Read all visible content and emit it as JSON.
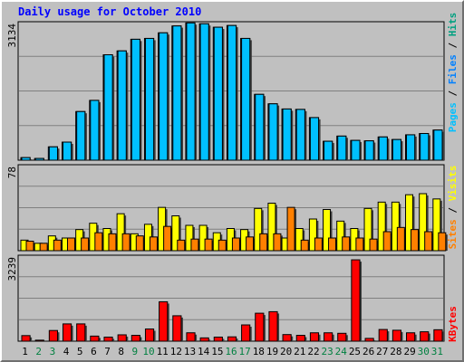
{
  "title": "Daily usage for October 2010",
  "colors": {
    "background": "#c0c0c0",
    "pages": "#00c0ff",
    "files": "#0080ff",
    "hits": "#00a080",
    "sites": "#ff8000",
    "visits": "#ffff00",
    "kbytes": "#ff0000",
    "title": "#0000ff",
    "weekend_label": "#008040",
    "day_label": "#000000"
  },
  "chart_data": [
    {
      "type": "bar",
      "panel": "top",
      "ymax_label": "3134",
      "ylim": [
        0,
        3134
      ],
      "legend_labels": [
        "Pages",
        "Files",
        "Hits"
      ],
      "categories": [
        "1",
        "2",
        "3",
        "4",
        "5",
        "6",
        "7",
        "8",
        "9",
        "10",
        "11",
        "12",
        "13",
        "14",
        "15",
        "16",
        "17",
        "18",
        "19",
        "20",
        "21",
        "22",
        "23",
        "24",
        "25",
        "26",
        "27",
        "28",
        "29",
        "30",
        "31"
      ],
      "series": [
        {
          "name": "Pages",
          "values": [
            60,
            40,
            310,
            420,
            1130,
            1390,
            2450,
            2540,
            2810,
            2830,
            2960,
            3120,
            3190,
            3170,
            3090,
            3130,
            2830,
            1530,
            1310,
            1190,
            1180,
            990,
            440,
            560,
            460,
            450,
            540,
            480,
            590,
            620,
            700
          ]
        },
        {
          "name": "Files",
          "values": [
            60,
            40,
            310,
            420,
            1130,
            1390,
            2450,
            2540,
            2810,
            2830,
            2960,
            3120,
            3190,
            3170,
            3090,
            3130,
            2830,
            1530,
            1310,
            1190,
            1180,
            990,
            440,
            560,
            460,
            450,
            540,
            480,
            590,
            620,
            700
          ]
        },
        {
          "name": "Hits",
          "values": [
            70,
            50,
            320,
            430,
            1140,
            1400,
            2470,
            2560,
            2820,
            2840,
            2970,
            3134,
            3190,
            3180,
            3100,
            3134,
            2840,
            1540,
            1320,
            1200,
            1190,
            1000,
            450,
            570,
            470,
            460,
            550,
            490,
            600,
            630,
            710
          ]
        }
      ]
    },
    {
      "type": "bar",
      "panel": "middle",
      "ymax_label": "78",
      "ylim": [
        0,
        78
      ],
      "legend_labels": [
        "Sites",
        "Visits"
      ],
      "categories": [
        "1",
        "2",
        "3",
        "4",
        "5",
        "6",
        "7",
        "8",
        "9",
        "10",
        "11",
        "12",
        "13",
        "14",
        "15",
        "16",
        "17",
        "18",
        "19",
        "20",
        "21",
        "22",
        "23",
        "24",
        "25",
        "26",
        "27",
        "28",
        "29",
        "30",
        "31"
      ],
      "series": [
        {
          "name": "Visits",
          "values": [
            10,
            7,
            14,
            12,
            20,
            26,
            21,
            35,
            16,
            25,
            41,
            33,
            24,
            24,
            17,
            21,
            20,
            40,
            45,
            12,
            21,
            30,
            39,
            28,
            21,
            40,
            46,
            46,
            53,
            54,
            49
          ]
        },
        {
          "name": "Sites",
          "values": [
            9,
            7,
            10,
            12,
            12,
            17,
            16,
            16,
            14,
            13,
            23,
            10,
            11,
            11,
            10,
            12,
            13,
            16,
            16,
            41,
            10,
            12,
            12,
            13,
            12,
            11,
            18,
            22,
            20,
            18,
            17
          ]
        }
      ]
    },
    {
      "type": "bar",
      "panel": "bottom",
      "ymax_label": "3239",
      "ylim": [
        0,
        3239
      ],
      "legend_labels": [
        "KBytes"
      ],
      "categories": [
        "1",
        "2",
        "3",
        "4",
        "5",
        "6",
        "7",
        "8",
        "9",
        "10",
        "11",
        "12",
        "13",
        "14",
        "15",
        "16",
        "17",
        "18",
        "19",
        "20",
        "21",
        "22",
        "23",
        "24",
        "25",
        "26",
        "27",
        "28",
        "29",
        "30",
        "31"
      ],
      "series": [
        {
          "name": "KBytes",
          "values": [
            220,
            40,
            420,
            680,
            680,
            200,
            160,
            250,
            230,
            480,
            1550,
            1000,
            330,
            130,
            160,
            170,
            640,
            1100,
            1160,
            260,
            230,
            330,
            330,
            310,
            3200,
            110,
            460,
            430,
            330,
            370,
            450
          ]
        }
      ]
    }
  ],
  "x_labels": [
    "1",
    "2",
    "3",
    "4",
    "5",
    "6",
    "7",
    "8",
    "9",
    "10",
    "11",
    "12",
    "13",
    "14",
    "15",
    "16",
    "17",
    "18",
    "19",
    "20",
    "21",
    "22",
    "23",
    "24",
    "25",
    "26",
    "27",
    "28",
    "29",
    "30",
    "31"
  ],
  "weekend_days": [
    "2",
    "3",
    "9",
    "10",
    "16",
    "17",
    "23",
    "24",
    "30",
    "31"
  ]
}
